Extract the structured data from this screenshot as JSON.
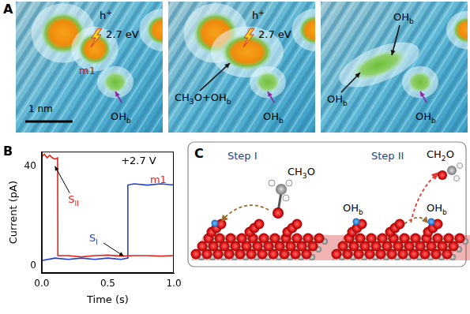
{
  "panel_a": {
    "letter": "A",
    "scale_bar": "1 nm",
    "frames": [
      {
        "labels": [
          {
            "runs": [
              {
                "t": "h"
              },
              {
                "t": "+",
                "sup": true
              }
            ]
          },
          {
            "runs": [
              {
                "t": "2.7 eV"
              }
            ]
          },
          {
            "runs": [
              {
                "t": "m1"
              }
            ],
            "color": "#d0102a"
          },
          {
            "runs": [
              {
                "t": "OH"
              },
              {
                "t": "b",
                "sub": true
              }
            ]
          }
        ]
      },
      {
        "labels": [
          {
            "runs": [
              {
                "t": "h"
              },
              {
                "t": "+",
                "sup": true
              }
            ]
          },
          {
            "runs": [
              {
                "t": "2.7 eV"
              }
            ]
          },
          {
            "runs": [
              {
                "t": "CH"
              },
              {
                "t": "3",
                "sub": true
              },
              {
                "t": "O+OH"
              },
              {
                "t": "b",
                "sub": true
              }
            ]
          },
          {
            "runs": [
              {
                "t": "OH"
              },
              {
                "t": "b",
                "sub": true
              }
            ]
          }
        ]
      },
      {
        "labels": [
          {
            "runs": [
              {
                "t": "OH"
              },
              {
                "t": "b",
                "sub": true
              }
            ]
          },
          {
            "runs": [
              {
                "t": "OH"
              },
              {
                "t": "b",
                "sub": true
              }
            ]
          },
          {
            "runs": [
              {
                "t": "OH"
              },
              {
                "t": "b",
                "sub": true
              }
            ]
          }
        ]
      }
    ]
  },
  "chart_data": {
    "type": "line",
    "letter": "B",
    "x_label": "Time (s)",
    "y_label": "Current (pA)",
    "xlim": [
      0,
      1.0
    ],
    "xticks": [
      {
        "value": 0,
        "label": "0.0"
      },
      {
        "value": 0.5,
        "label": "0.5"
      },
      {
        "value": 1.0,
        "label": "1.0"
      }
    ],
    "ylim": [
      -3,
      46
    ],
    "yticks": [
      0,
      40
    ],
    "grid": false,
    "series": [
      {
        "color": "#e3241c",
        "x": [
          0,
          0.02,
          0.04,
          0.06,
          0.08,
          0.1,
          0.12,
          0.122,
          0.2,
          0.3,
          0.4,
          0.5,
          0.6,
          0.7,
          0.8,
          0.9,
          1.0
        ],
        "values": [
          44,
          45,
          43.5,
          44.5,
          43.5,
          43,
          43.5,
          4,
          4,
          3.5,
          4,
          4.2,
          3.8,
          4,
          4,
          3.8,
          4
        ]
      },
      {
        "color": "#1f3fd8",
        "x": [
          0,
          0.1,
          0.2,
          0.3,
          0.4,
          0.5,
          0.6,
          0.65,
          0.652,
          0.7,
          0.8,
          0.9,
          1.0
        ],
        "values": [
          2,
          3,
          2.5,
          3,
          2.5,
          3,
          2.5,
          3,
          32.5,
          33,
          32.5,
          33,
          32.5
        ]
      }
    ],
    "annotations": [
      {
        "runs": [
          {
            "t": "+2.7 V"
          }
        ],
        "color": "#000000"
      },
      {
        "runs": [
          {
            "t": "S"
          },
          {
            "t": "II",
            "sub": true
          }
        ],
        "color": "#e3241c"
      },
      {
        "runs": [
          {
            "t": "S"
          },
          {
            "t": "I",
            "sub": true
          }
        ],
        "color": "#1f3fd8"
      },
      {
        "runs": [
          {
            "t": "m1"
          }
        ],
        "color": "#e3241c"
      }
    ]
  },
  "panel_c": {
    "letter": "C",
    "steps": [
      {
        "title": "Step I",
        "labels": [
          {
            "runs": [
              {
                "t": "CH"
              },
              {
                "t": "3",
                "sub": true
              },
              {
                "t": "O"
              }
            ]
          }
        ]
      },
      {
        "title": "Step II",
        "labels": [
          {
            "runs": [
              {
                "t": "OH"
              },
              {
                "t": "b",
                "sub": true
              }
            ]
          },
          {
            "runs": [
              {
                "t": "OH"
              },
              {
                "t": "b",
                "sub": true
              }
            ]
          },
          {
            "runs": [
              {
                "t": "CH"
              },
              {
                "t": "2",
                "sub": true
              },
              {
                "t": "O"
              }
            ]
          }
        ]
      }
    ]
  }
}
